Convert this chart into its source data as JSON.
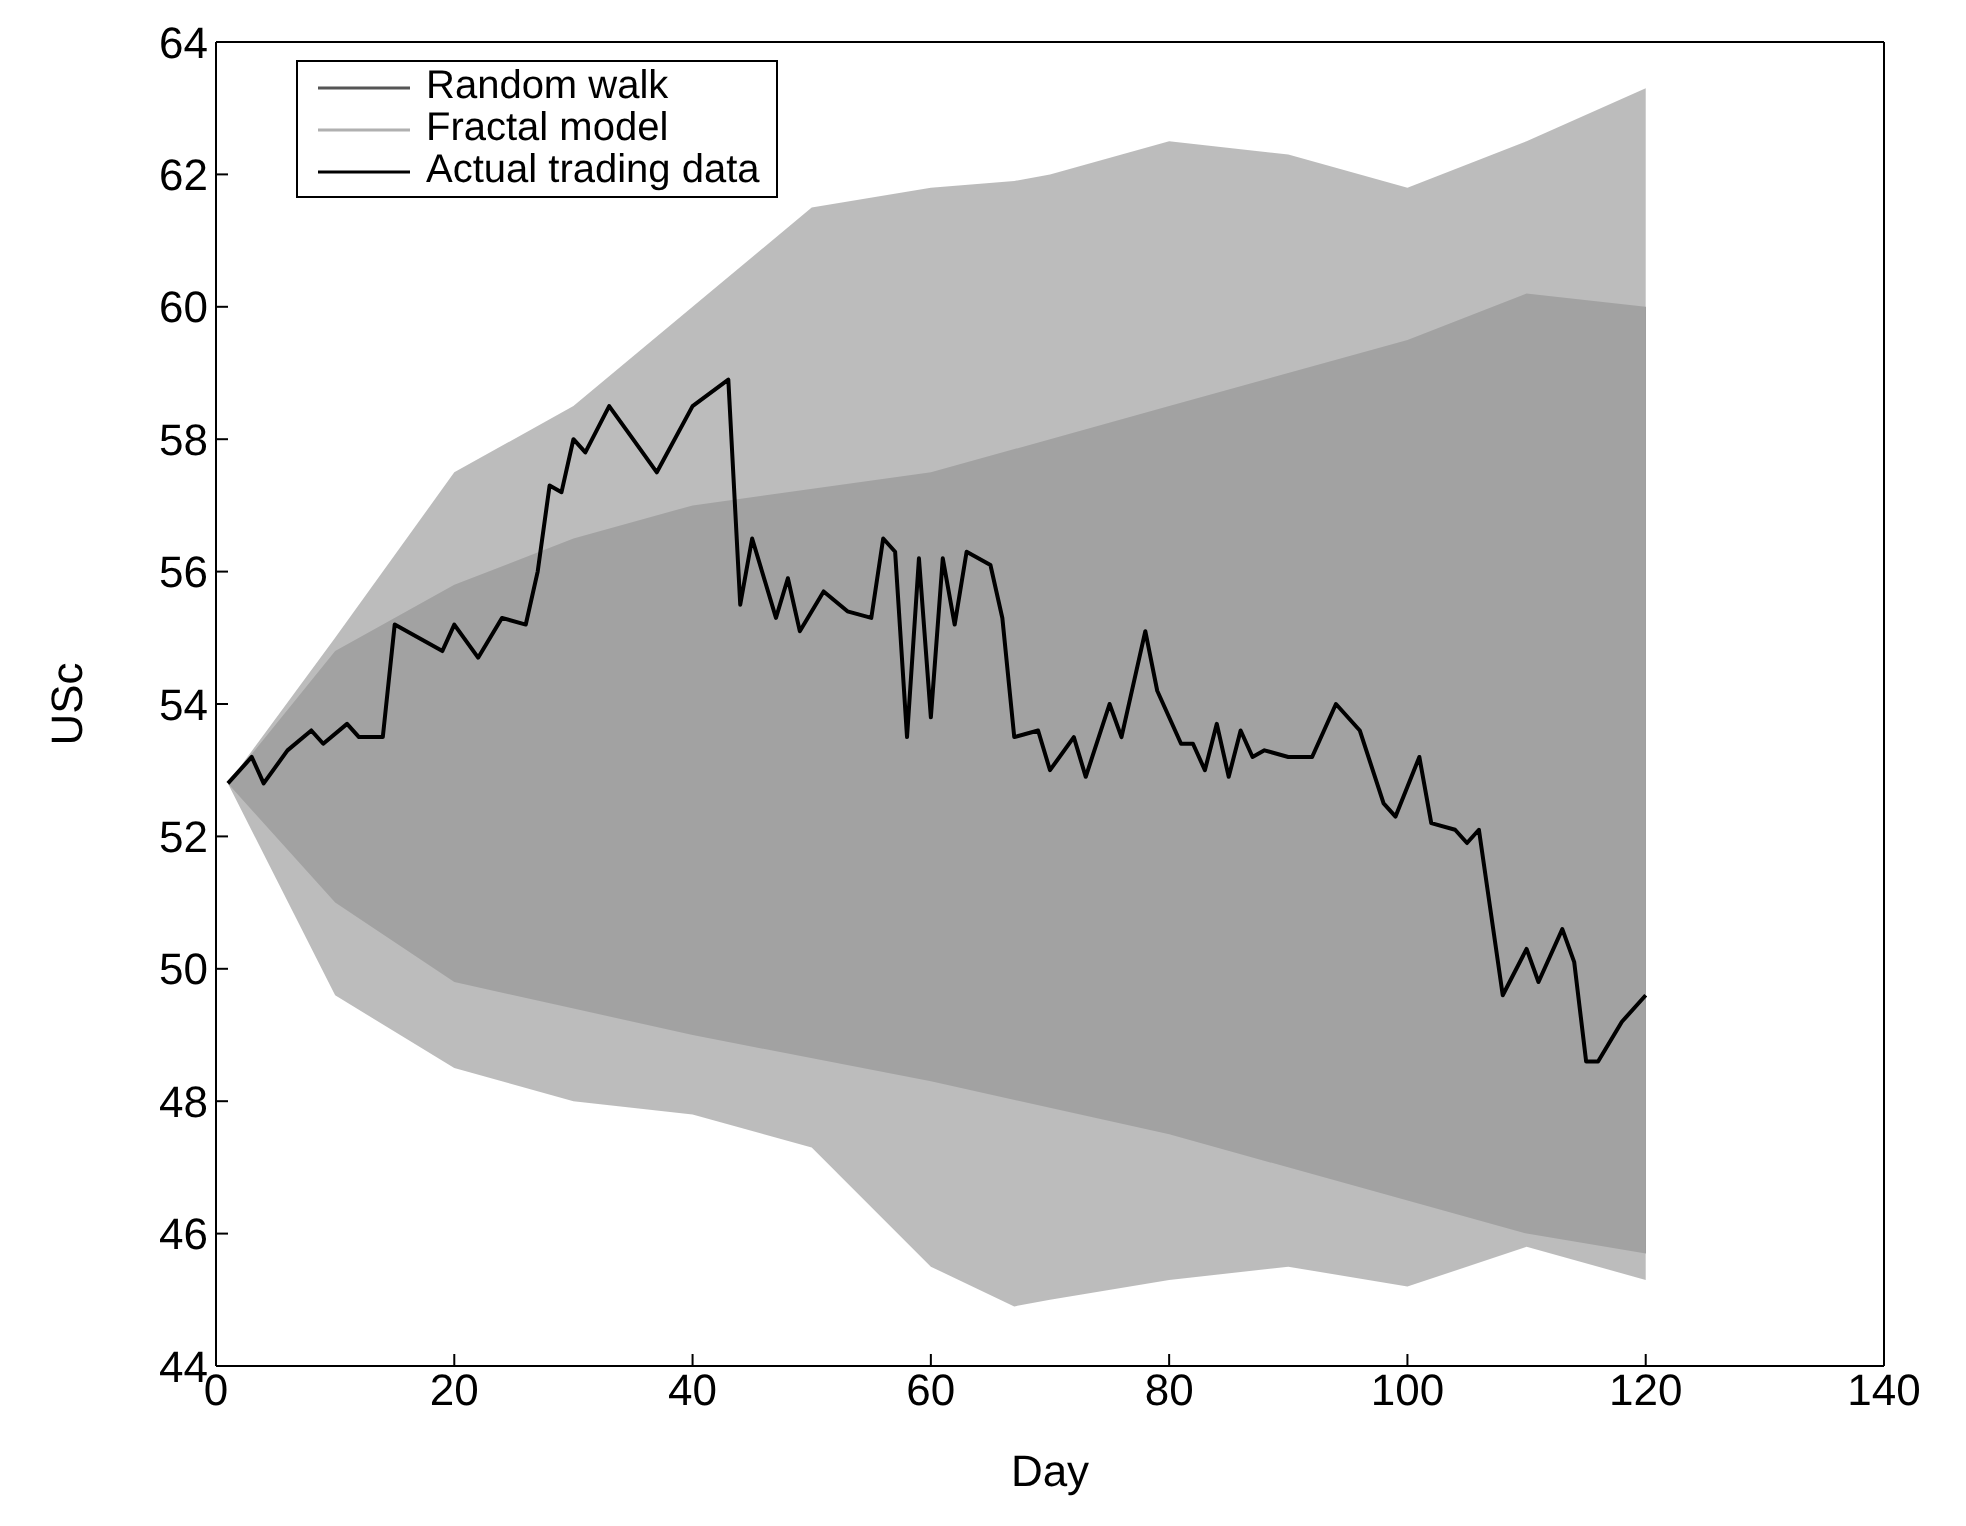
{
  "chart_data": {
    "type": "line",
    "xlabel": "Day",
    "ylabel": "USc",
    "xlim": [
      0,
      140
    ],
    "xticks": [
      0,
      20,
      40,
      60,
      80,
      100,
      120,
      140
    ],
    "ylim": [
      44,
      64
    ],
    "yticks": [
      44,
      46,
      48,
      50,
      52,
      54,
      56,
      58,
      60,
      62,
      64
    ],
    "grid": false,
    "legend": "top left",
    "marker": "none",
    "line_style": "solid",
    "series": [
      {
        "name": "Random walk",
        "color": "#555555",
        "x": [
          1,
          10,
          20,
          30,
          40,
          60,
          80,
          100,
          110,
          120
        ],
        "values": [
          null,
          null,
          null,
          null,
          null,
          null,
          null,
          null,
          null,
          null
        ],
        "lower": [
          52.8,
          51,
          49.8,
          49.4,
          49,
          48.3,
          47.5,
          46.5,
          46,
          45.7
        ],
        "upper": [
          52.8,
          54.8,
          55.8,
          56.5,
          57,
          57.5,
          58.5,
          59.5,
          60.2,
          60
        ]
      },
      {
        "name": "Fractal model",
        "color": "#b0b0b0",
        "x": [
          1,
          10,
          20,
          30,
          40,
          50,
          60,
          67,
          70,
          80,
          90,
          100,
          110,
          120
        ],
        "values": [
          null,
          null,
          null,
          null,
          null,
          null,
          null,
          null,
          null,
          null,
          null,
          null,
          null,
          null
        ],
        "lower": [
          52.8,
          49.6,
          48.5,
          48,
          47.8,
          47.3,
          45.5,
          44.9,
          45,
          45.3,
          45.5,
          45.2,
          45.8,
          45.3
        ],
        "upper": [
          52.8,
          55,
          57.5,
          58.5,
          60,
          61.5,
          61.8,
          61.9,
          62,
          62.5,
          62.3,
          61.8,
          62.5,
          63.3
        ]
      },
      {
        "name": "Actual trading data",
        "color": "#000000",
        "x": [
          1,
          3,
          4,
          6,
          8,
          9,
          11,
          12,
          14,
          15,
          17,
          19,
          20,
          22,
          24,
          26,
          27,
          28,
          29,
          30,
          31,
          33,
          35,
          37,
          40,
          43,
          44,
          45,
          47,
          48,
          49,
          51,
          53,
          55,
          56,
          57,
          58,
          59,
          60,
          61,
          62,
          63,
          65,
          66,
          67,
          69,
          70,
          72,
          73,
          75,
          76,
          78,
          79,
          81,
          82,
          83,
          84,
          85,
          86,
          87,
          88,
          90,
          92,
          94,
          96,
          98,
          99,
          101,
          102,
          104,
          105,
          106,
          108,
          110,
          111,
          113,
          114,
          115,
          116,
          118,
          120
        ],
        "values": [
          52.8,
          53.2,
          52.8,
          53.3,
          53.6,
          53.4,
          53.7,
          53.5,
          53.5,
          55.2,
          55,
          54.8,
          55.2,
          54.7,
          55.3,
          55.2,
          56,
          57.3,
          57.2,
          58,
          57.8,
          58.5,
          58,
          57.5,
          58.5,
          58.9,
          55.5,
          56.5,
          55.3,
          55.9,
          55.1,
          55.7,
          55.4,
          55.3,
          56.5,
          56.3,
          53.5,
          56.2,
          53.8,
          56.2,
          55.2,
          56.3,
          56.1,
          55.3,
          53.5,
          53.6,
          53,
          53.5,
          52.9,
          54,
          53.5,
          55.1,
          54.2,
          53.4,
          53.4,
          53,
          53.7,
          52.9,
          53.6,
          53.2,
          53.3,
          53.2,
          53.2,
          54,
          53.6,
          52.5,
          52.3,
          53.2,
          52.2,
          52.1,
          51.9,
          52.1,
          49.6,
          50.3,
          49.8,
          50.6,
          50.1,
          48.6,
          48.6,
          49.2,
          49.6
        ]
      }
    ]
  }
}
